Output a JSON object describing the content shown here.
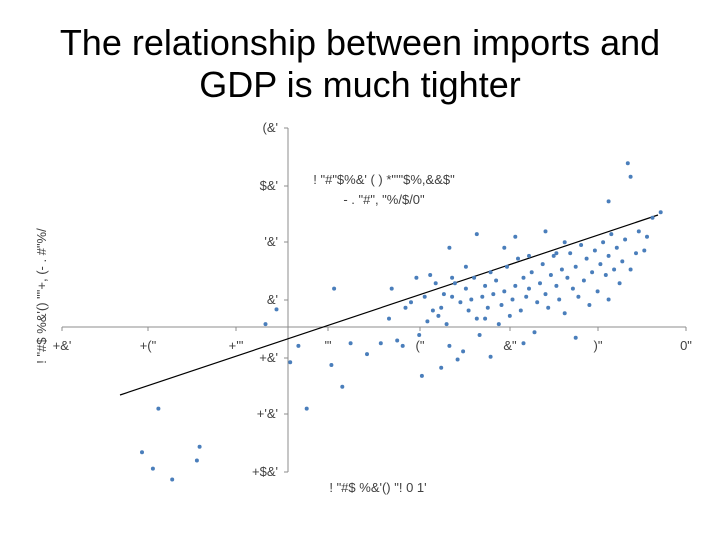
{
  "slide": {
    "title_line1": "The relationship between imports and",
    "title_line2": "GDP is much tighter"
  },
  "chart_data": {
    "type": "scatter",
    "xlabel": "! \"#$ %&'() \"! 0 1'",
    "ylabel": "! \"#$ %&'() \"\"+, (- . #\"%/",
    "x_tick_labels": [
      "+&'",
      "+(\"",
      "+'\"",
      "'\"",
      "(\"",
      "&\"",
      ")\"",
      "0\""
    ],
    "y_tick_labels": [
      "(&'",
      "$&'",
      "'&'",
      "&'",
      "+&'",
      "+'&'",
      "+$&'"
    ],
    "xlim": [
      -6,
      5
    ],
    "ylim": [
      -3,
      4
    ],
    "trendline": {
      "equation_line1": "! \"#\"$%&' ( ) *\"'\"$%,&&$\"",
      "equation_line2": "- . \"#\", \"%/$/0\"",
      "x1": -5.0,
      "y1": -1.25,
      "x2": 4.8,
      "y2": 2.05
    },
    "points": [
      [
        -4.3,
        -1.5
      ],
      [
        -4.6,
        -2.3
      ],
      [
        -4.4,
        -2.6
      ],
      [
        -4.05,
        -2.8
      ],
      [
        -3.6,
        -2.45
      ],
      [
        -3.55,
        -2.2
      ],
      [
        -2.35,
        0.05
      ],
      [
        -2.15,
        0.32
      ],
      [
        -1.9,
        -0.65
      ],
      [
        -1.75,
        -0.35
      ],
      [
        -1.15,
        -0.7
      ],
      [
        -1.1,
        0.7
      ],
      [
        -0.25,
        -0.3
      ],
      [
        -0.1,
        0.15
      ],
      [
        0.15,
        -0.35
      ],
      [
        0.3,
        0.45
      ],
      [
        0.45,
        -0.15
      ],
      [
        0.55,
        0.55
      ],
      [
        0.6,
        0.1
      ],
      [
        0.7,
        0.3
      ],
      [
        0.75,
        0.8
      ],
      [
        0.8,
        0.2
      ],
      [
        0.85,
        0.35
      ],
      [
        0.9,
        0.6
      ],
      [
        0.95,
        0.05
      ],
      [
        1.0,
        -0.35
      ],
      [
        1.05,
        0.55
      ],
      [
        1.1,
        0.8
      ],
      [
        1.2,
        0.45
      ],
      [
        1.25,
        -0.45
      ],
      [
        1.3,
        0.7
      ],
      [
        1.35,
        0.3
      ],
      [
        1.4,
        0.5
      ],
      [
        1.45,
        0.9
      ],
      [
        1.5,
        0.15
      ],
      [
        1.55,
        -0.15
      ],
      [
        1.6,
        0.55
      ],
      [
        1.65,
        0.75
      ],
      [
        1.7,
        0.35
      ],
      [
        1.75,
        1.0
      ],
      [
        1.8,
        0.6
      ],
      [
        1.85,
        0.85
      ],
      [
        1.9,
        0.05
      ],
      [
        1.95,
        0.4
      ],
      [
        2.0,
        0.65
      ],
      [
        2.05,
        1.1
      ],
      [
        2.1,
        0.2
      ],
      [
        2.15,
        0.5
      ],
      [
        2.2,
        0.75
      ],
      [
        2.25,
        1.25
      ],
      [
        2.3,
        0.3
      ],
      [
        2.35,
        0.9
      ],
      [
        2.4,
        0.55
      ],
      [
        2.45,
        0.7
      ],
      [
        2.5,
        1.0
      ],
      [
        2.55,
        -0.1
      ],
      [
        2.6,
        0.45
      ],
      [
        2.65,
        0.8
      ],
      [
        2.7,
        1.15
      ],
      [
        2.75,
        0.6
      ],
      [
        2.8,
        0.35
      ],
      [
        2.85,
        0.95
      ],
      [
        2.9,
        1.3
      ],
      [
        2.95,
        0.75
      ],
      [
        3.0,
        0.5
      ],
      [
        3.05,
        1.05
      ],
      [
        3.1,
        0.25
      ],
      [
        3.15,
        0.9
      ],
      [
        3.2,
        1.35
      ],
      [
        3.25,
        0.7
      ],
      [
        3.3,
        1.1
      ],
      [
        3.35,
        0.55
      ],
      [
        3.4,
        1.5
      ],
      [
        3.45,
        0.85
      ],
      [
        3.5,
        1.25
      ],
      [
        3.55,
        0.4
      ],
      [
        3.6,
        1.0
      ],
      [
        3.65,
        1.4
      ],
      [
        3.7,
        0.65
      ],
      [
        3.75,
        1.15
      ],
      [
        3.8,
        1.55
      ],
      [
        3.85,
        0.95
      ],
      [
        3.9,
        1.3
      ],
      [
        3.95,
        1.7
      ],
      [
        4.0,
        1.05
      ],
      [
        4.05,
        1.45
      ],
      [
        4.1,
        0.8
      ],
      [
        4.15,
        1.2
      ],
      [
        4.2,
        1.6
      ],
      [
        4.3,
        1.05
      ],
      [
        4.4,
        1.35
      ],
      [
        4.45,
        1.75
      ],
      [
        4.55,
        1.4
      ],
      [
        4.7,
        2.0
      ],
      [
        4.25,
        3.0
      ],
      [
        4.3,
        2.75
      ],
      [
        4.85,
        2.1
      ],
      [
        3.9,
        2.3
      ],
      [
        2.2,
        1.65
      ],
      [
        1.5,
        1.7
      ],
      [
        1.0,
        1.45
      ],
      [
        0.4,
        0.9
      ],
      [
        -0.05,
        0.7
      ],
      [
        0.2,
        0.35
      ],
      [
        2.75,
        1.75
      ],
      [
        3.1,
        1.55
      ],
      [
        1.15,
        -0.6
      ],
      [
        0.85,
        -0.75
      ],
      [
        -0.5,
        -0.5
      ],
      [
        -0.8,
        -0.3
      ],
      [
        -1.6,
        -1.5
      ],
      [
        -0.95,
        -1.1
      ],
      [
        0.5,
        -0.9
      ],
      [
        1.75,
        -0.55
      ],
      [
        2.35,
        -0.3
      ],
      [
        3.3,
        -0.2
      ],
      [
        3.9,
        0.5
      ],
      [
        0.05,
        -0.25
      ],
      [
        1.3,
        1.1
      ],
      [
        2.0,
        1.45
      ],
      [
        2.95,
        1.35
      ],
      [
        4.6,
        1.65
      ],
      [
        1.65,
        0.15
      ],
      [
        0.65,
        0.95
      ],
      [
        2.45,
        1.3
      ],
      [
        1.05,
        0.9
      ]
    ]
  }
}
